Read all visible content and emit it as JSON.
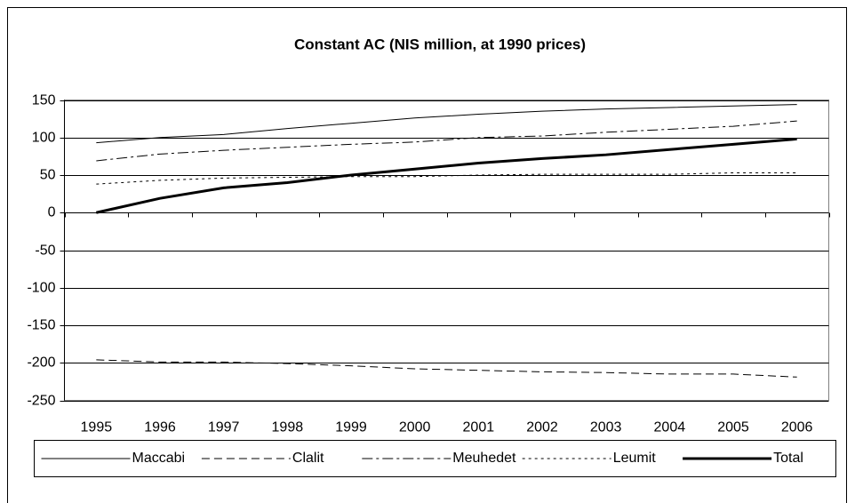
{
  "chart_data": {
    "type": "line",
    "title": "Constant AC (NIS million, at 1990 prices)",
    "categories": [
      "1995",
      "1996",
      "1997",
      "1998",
      "1999",
      "2000",
      "2001",
      "2002",
      "2003",
      "2004",
      "2005",
      "2006"
    ],
    "series": [
      {
        "name": "Maccabi",
        "color": "#000000",
        "dash": "solid",
        "width": 1,
        "values": [
          93,
          100,
          104,
          112,
          119,
          126,
          131,
          135,
          138,
          140,
          142,
          144
        ]
      },
      {
        "name": "Clalit",
        "color": "#000000",
        "dash": "dashed",
        "width": 1,
        "values": [
          -196,
          -199,
          -199,
          -201,
          -204,
          -208,
          -210,
          -212,
          -213,
          -215,
          -215,
          -219
        ]
      },
      {
        "name": "Meuhedet",
        "color": "#000000",
        "dash": "dashdot",
        "width": 1,
        "values": [
          69,
          78,
          83,
          87,
          91,
          94,
          100,
          102,
          107,
          111,
          115,
          122
        ]
      },
      {
        "name": "Leumit",
        "color": "#000000",
        "dash": "dotted",
        "width": 1,
        "values": [
          38,
          43,
          46,
          47,
          48,
          48,
          50,
          51,
          51,
          51,
          53,
          53
        ]
      },
      {
        "name": "Total",
        "color": "#000000",
        "dash": "solid",
        "width": 3,
        "values": [
          0,
          19,
          33,
          40,
          50,
          58,
          66,
          72,
          77,
          84,
          91,
          98
        ]
      }
    ],
    "ylim": [
      -250,
      150
    ],
    "yticks": [
      -250,
      -200,
      -150,
      -100,
      -50,
      0,
      50,
      100,
      150
    ],
    "grid": true,
    "legend": "bottom"
  }
}
